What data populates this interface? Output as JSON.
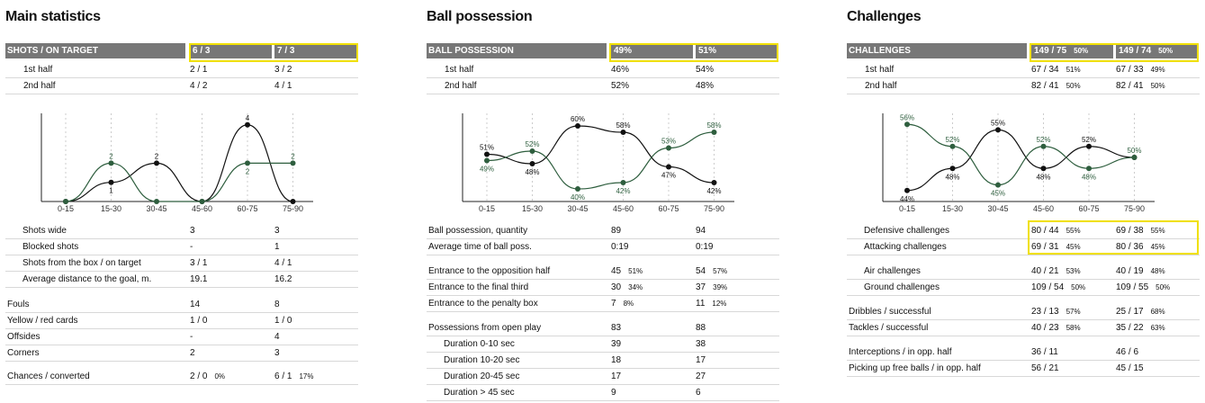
{
  "colors": {
    "header_bg": "#777777",
    "highlight": "#f0e000",
    "series_a": "#111111",
    "series_b": "#2e5e3e"
  },
  "panels": [
    {
      "title": "Main statistics",
      "header": {
        "label": "SHOTS / ON TARGET",
        "v1": "6 / 3",
        "v2": "7 / 3"
      },
      "sub": [
        {
          "label": "1st half",
          "v1": "2 / 1",
          "v2": "3 / 2"
        },
        {
          "label": "2nd half",
          "v1": "4 / 2",
          "v2": "4 / 1"
        }
      ],
      "chart_data": {
        "type": "line",
        "categories": [
          "0-15",
          "15-30",
          "30-45",
          "45-60",
          "60-75",
          "75-90"
        ],
        "series": [
          {
            "values": [
              0,
              1,
              2,
              0,
              4,
              0
            ],
            "labels": [
              "",
              "1",
              "2",
              "",
              "4",
              ""
            ]
          },
          {
            "values": [
              0,
              2,
              0,
              0,
              2,
              2
            ],
            "labels": [
              "",
              "2",
              "",
              "",
              "2",
              "2"
            ]
          }
        ]
      },
      "rows": [
        {
          "label": "Shots wide",
          "v1": "3",
          "v2": "3",
          "ind": 1
        },
        {
          "label": "Blocked shots",
          "v1": "-",
          "v2": "1",
          "ind": 1
        },
        {
          "label": "Shots from the box / on target",
          "v1": "3 / 1",
          "v2": "4 / 1",
          "ind": 1
        },
        {
          "label": "Average distance to the goal, m.",
          "v1": "19.1",
          "v2": "16.2",
          "ind": 1
        },
        {
          "label": "Fouls",
          "v1": "14",
          "v2": "8"
        },
        {
          "label": "Yellow / red cards",
          "v1": "1 / 0",
          "v2": "1 / 0"
        },
        {
          "label": "Offsides",
          "v1": "-",
          "v2": "4"
        },
        {
          "label": "Corners",
          "v1": "2",
          "v2": "3"
        },
        {
          "label": "Chances / converted",
          "v1": "2 / 0",
          "p1": "0%",
          "v2": "6 / 1",
          "p2": "17%"
        }
      ]
    },
    {
      "title": "Ball possession",
      "header": {
        "label": "BALL POSSESSION",
        "v1": "49%",
        "v2": "51%"
      },
      "sub": [
        {
          "label": "1st half",
          "v1": "46%",
          "v2": "54%"
        },
        {
          "label": "2nd half",
          "v1": "52%",
          "v2": "48%"
        }
      ],
      "chart_data": {
        "type": "line",
        "categories": [
          "0-15",
          "15-30",
          "30-45",
          "45-60",
          "60-75",
          "75-90"
        ],
        "series": [
          {
            "values": [
              51,
              48,
              60,
              58,
              47,
              42
            ],
            "labels": [
              "51%",
              "48%",
              "60%",
              "58%",
              "47%",
              "42%"
            ]
          },
          {
            "values": [
              49,
              52,
              40,
              42,
              53,
              58
            ],
            "labels": [
              "49%",
              "52%",
              "40%",
              "42%",
              "53%",
              "58%"
            ]
          }
        ]
      },
      "rows": [
        {
          "label": "Ball possession, quantity",
          "v1": "89",
          "v2": "94"
        },
        {
          "label": "Average time of ball poss.",
          "v1": "0:19",
          "v2": "0:19"
        },
        {
          "label": "Entrance to the opposition half",
          "v1": "45",
          "p1": "51%",
          "v2": "54",
          "p2": "57%"
        },
        {
          "label": "Entrance to the final third",
          "v1": "30",
          "p1": "34%",
          "v2": "37",
          "p2": "39%"
        },
        {
          "label": "Entrance to the penalty box",
          "v1": "7",
          "p1": "8%",
          "v2": "11",
          "p2": "12%"
        },
        {
          "label": "Possessions from open play",
          "v1": "83",
          "v2": "88"
        },
        {
          "label": "Duration  0-10 sec",
          "v1": "39",
          "v2": "38",
          "ind": 1
        },
        {
          "label": "Duration  10-20 sec",
          "v1": "18",
          "v2": "17",
          "ind": 1
        },
        {
          "label": "Duration  20-45 sec",
          "v1": "17",
          "v2": "27",
          "ind": 1
        },
        {
          "label": "Duration  > 45 sec",
          "v1": "9",
          "v2": "6",
          "ind": 1
        }
      ]
    },
    {
      "title": "Challenges",
      "header": {
        "label": "CHALLENGES",
        "v1": "149 / 75",
        "p1": "50%",
        "v2": "149 / 74",
        "p2": "50%"
      },
      "sub": [
        {
          "label": "1st half",
          "v1": "67 / 34",
          "p1": "51%",
          "v2": "67 / 33",
          "p2": "49%"
        },
        {
          "label": "2nd half",
          "v1": "82 / 41",
          "p1": "50%",
          "v2": "82 / 41",
          "p2": "50%"
        }
      ],
      "chart_data": {
        "type": "line",
        "categories": [
          "0-15",
          "15-30",
          "30-45",
          "45-60",
          "60-75",
          "75-90"
        ],
        "series": [
          {
            "values": [
              44,
              48,
              55,
              48,
              52,
              50
            ],
            "labels": [
              "44%",
              "48%",
              "55%",
              "48%",
              "52%",
              ""
            ]
          },
          {
            "values": [
              56,
              52,
              45,
              52,
              48,
              50
            ],
            "labels": [
              "56%",
              "52%",
              "45%",
              "52%",
              "48%",
              "50%"
            ]
          }
        ]
      },
      "rows": [
        {
          "label": "Defensive challenges",
          "v1": "80 / 44",
          "p1": "55%",
          "v2": "69 / 38",
          "p2": "55%",
          "ind": 1
        },
        {
          "label": "Attacking challenges",
          "v1": "69 / 31",
          "p1": "45%",
          "v2": "80 / 36",
          "p2": "45%",
          "ind": 1
        },
        {
          "label": "Air challenges",
          "v1": "40 / 21",
          "p1": "53%",
          "v2": "40 / 19",
          "p2": "48%",
          "ind": 1
        },
        {
          "label": "Ground challenges",
          "v1": "109 / 54",
          "p1": "50%",
          "v2": "109 / 55",
          "p2": "50%",
          "ind": 1
        },
        {
          "label": "Dribbles / successful",
          "v1": "23 / 13",
          "p1": "57%",
          "v2": "25 / 17",
          "p2": "68%"
        },
        {
          "label": "Tackles / successful",
          "v1": "40 / 23",
          "p1": "58%",
          "v2": "35 / 22",
          "p2": "63%"
        },
        {
          "label": "Interceptions / in opp. half",
          "v1": "36 / 11",
          "v2": "46 / 6"
        },
        {
          "label": "Picking up free balls / in opp. half",
          "v1": "56 / 21",
          "v2": "45 / 15"
        }
      ]
    }
  ]
}
